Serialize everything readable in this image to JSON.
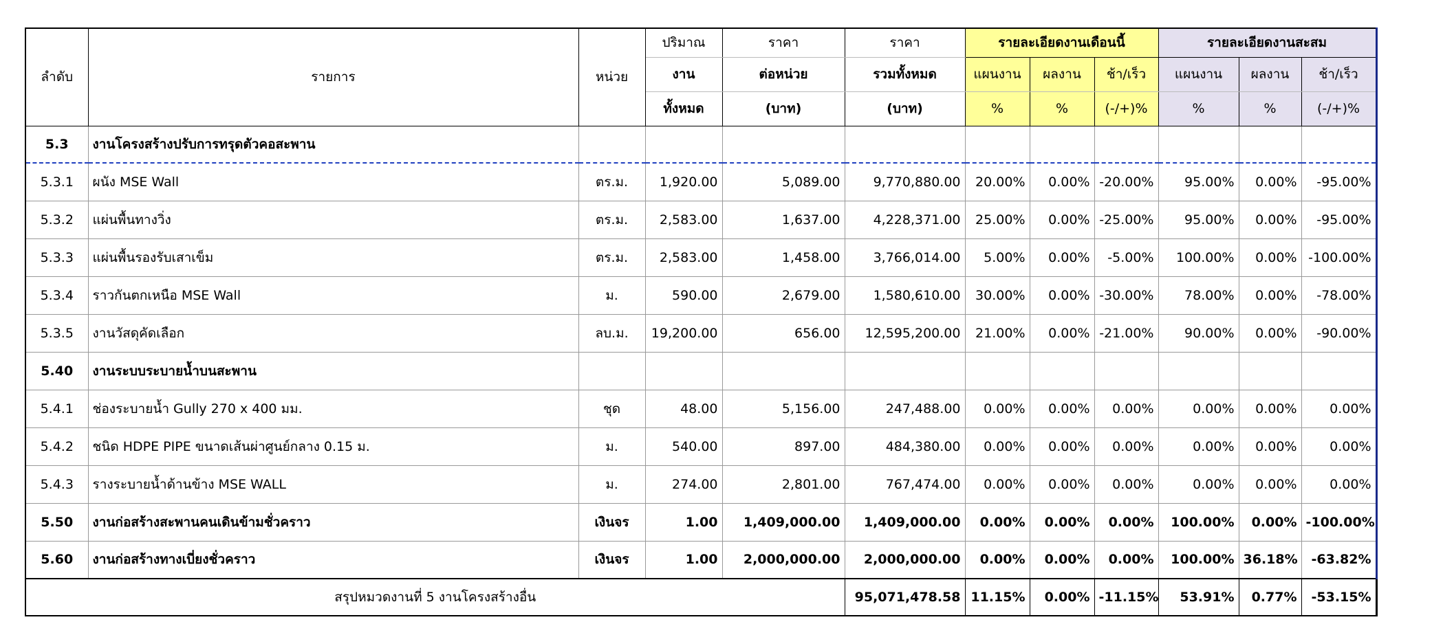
{
  "header": {
    "seq": "ลำดับ",
    "item": "รายการ",
    "unit": "หน่วย",
    "qty": [
      "ปริมาณ",
      "งาน",
      "ทั้งหมด"
    ],
    "unit_price": [
      "ราคา",
      "ต่อหน่วย",
      "(บาท)"
    ],
    "total": [
      "ราคา",
      "รวมทั้งหมด",
      "(บาท)"
    ],
    "month": {
      "title": "รายละเอียดงานเดือนนี้",
      "cols": [
        [
          "แผนงาน",
          "%"
        ],
        [
          "ผลงาน",
          "%"
        ],
        [
          "ช้า/เร็ว",
          "(-/+)%"
        ]
      ]
    },
    "cumulative": {
      "title": "รายละเอียดงานสะสม",
      "cols": [
        [
          "แผนงาน",
          "%"
        ],
        [
          "ผลงาน",
          "%"
        ],
        [
          "ช้า/เร็ว",
          "(-/+)%"
        ]
      ]
    }
  },
  "rows": [
    [
      "5.3",
      "งานโครงสร้างปรับการทรุดตัวคอสะพาน"
    ],
    [
      "5.3.1",
      "ผนัง MSE Wall",
      "ตร.ม.",
      "1,920.00",
      "5,089.00",
      "9,770,880.00",
      "20.00%",
      "0.00%",
      "-20.00%",
      "95.00%",
      "0.00%",
      "-95.00%"
    ],
    [
      "5.3.2",
      "แผ่นพื้นทางวิ่ง",
      "ตร.ม.",
      "2,583.00",
      "1,637.00",
      "4,228,371.00",
      "25.00%",
      "0.00%",
      "-25.00%",
      "95.00%",
      "0.00%",
      "-95.00%"
    ],
    [
      "5.3.3",
      "แผ่นพื้นรองรับเสาเข็ม",
      "ตร.ม.",
      "2,583.00",
      "1,458.00",
      "3,766,014.00",
      "5.00%",
      "0.00%",
      "-5.00%",
      "100.00%",
      "0.00%",
      "-100.00%"
    ],
    [
      "5.3.4",
      "ราวกันตกเหนือ MSE Wall",
      "ม.",
      "590.00",
      "2,679.00",
      "1,580,610.00",
      "30.00%",
      "0.00%",
      "-30.00%",
      "78.00%",
      "0.00%",
      "-78.00%"
    ],
    [
      "5.3.5",
      "งานวัสดุคัดเลือก",
      "ลบ.ม.",
      "19,200.00",
      "656.00",
      "12,595,200.00",
      "21.00%",
      "0.00%",
      "-21.00%",
      "90.00%",
      "0.00%",
      "-90.00%"
    ],
    [
      "5.40",
      "งานระบบระบายน้ำบนสะพาน"
    ],
    [
      "5.4.1",
      "ช่องระบายน้ำ Gully 270 x 400 มม.",
      "ชุด",
      "48.00",
      "5,156.00",
      "247,488.00",
      "0.00%",
      "0.00%",
      "0.00%",
      "0.00%",
      "0.00%",
      "0.00%"
    ],
    [
      "5.4.2",
      "ชนิด HDPE PIPE ขนาดเส้นผ่าศูนย์กลาง 0.15 ม.",
      "ม.",
      "540.00",
      "897.00",
      "484,380.00",
      "0.00%",
      "0.00%",
      "0.00%",
      "0.00%",
      "0.00%",
      "0.00%"
    ],
    [
      "5.4.3",
      "รางระบายน้ำด้านข้าง MSE WALL",
      "ม.",
      "274.00",
      "2,801.00",
      "767,474.00",
      "0.00%",
      "0.00%",
      "0.00%",
      "0.00%",
      "0.00%",
      "0.00%"
    ],
    [
      "5.50",
      "งานก่อสร้างสะพานคนเดินข้ามชั่วคราว",
      "เงินจร",
      "1.00",
      "1,409,000.00",
      "1,409,000.00",
      "0.00%",
      "0.00%",
      "0.00%",
      "100.00%",
      "0.00%",
      "-100.00%"
    ],
    [
      "5.60",
      "งานก่อสร้างทางเบี่ยงชั่วคราว",
      "เงินจร",
      "1.00",
      "2,000,000.00",
      "2,000,000.00",
      "0.00%",
      "0.00%",
      "0.00%",
      "100.00%",
      "36.18%",
      "-63.82%"
    ]
  ],
  "summary": {
    "label": "สรุปหมวดงานที่ 5 งานโครงสร้างอื่น",
    "total": "95,071,478.58",
    "values": [
      "11.15%",
      "0.00%",
      "-11.15%",
      "53.91%",
      "0.77%",
      "-53.15%"
    ]
  }
}
